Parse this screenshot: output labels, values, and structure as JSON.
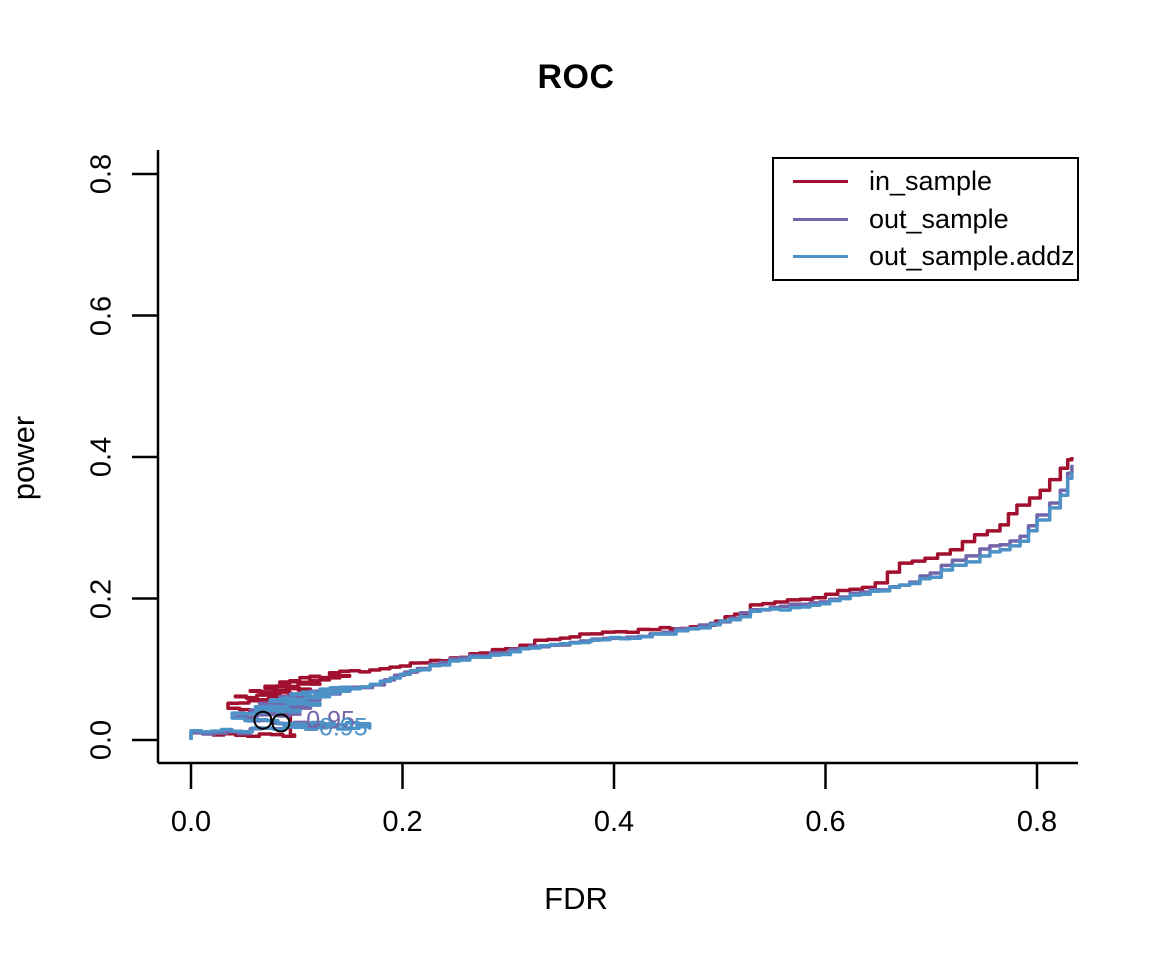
{
  "title": "ROC",
  "x_axis": {
    "label": "FDR",
    "tick_labels": [
      "0.0",
      "0.2",
      "0.4",
      "0.6",
      "0.8"
    ],
    "tick_values": [
      0.0,
      0.2,
      0.4,
      0.6,
      0.8
    ],
    "range": [
      0,
      0.87
    ]
  },
  "y_axis": {
    "label": "power",
    "tick_labels": [
      "0.0",
      "0.2",
      "0.4",
      "0.6",
      "0.8"
    ],
    "tick_values": [
      0.0,
      0.2,
      0.4,
      0.6,
      0.8
    ],
    "range": [
      0,
      0.83
    ]
  },
  "colors": {
    "axis": "#000000",
    "in_sample": "#A1112F",
    "out_sample": "#7465AB",
    "out_sample_addz": "#4D92C7",
    "marker": "#000000"
  },
  "legend": {
    "entries": [
      {
        "label": "in_sample",
        "color": "#A1112F"
      },
      {
        "label": "out_sample",
        "color": "#7465AB"
      },
      {
        "label": "out_sample.addz",
        "color": "#4D92C7"
      }
    ]
  },
  "annotations": {
    "cutoff_labels": [
      {
        "text": "0.95",
        "color": "#7465AB",
        "fdr": 0.109,
        "power": 0.025
      },
      {
        "text": "0.95",
        "color": "#4D92C7",
        "fdr": 0.121,
        "power": 0.0155
      }
    ],
    "markers": [
      {
        "fdr": 0.068,
        "power": 0.028
      },
      {
        "fdr": 0.085,
        "power": 0.024
      }
    ]
  },
  "chart_data": {
    "type": "line",
    "title": "ROC",
    "xlabel": "FDR",
    "ylabel": "power",
    "xlim": [
      0,
      0.87
    ],
    "ylim": [
      0,
      0.83
    ],
    "grid": false,
    "legend_position": "top-right",
    "series": [
      {
        "name": "in_sample",
        "color": "#A1112F",
        "points": [
          [
            0.02,
            0.007
          ],
          [
            0.098,
            0.007
          ],
          [
            0.094,
            0.035
          ],
          [
            0.046,
            0.045
          ],
          [
            0.035,
            0.052
          ],
          [
            0.094,
            0.057
          ],
          [
            0.042,
            0.061
          ],
          [
            0.103,
            0.065
          ],
          [
            0.056,
            0.069
          ],
          [
            0.113,
            0.072
          ],
          [
            0.07,
            0.076
          ],
          [
            0.122,
            0.079
          ],
          [
            0.084,
            0.082
          ],
          [
            0.131,
            0.085
          ],
          [
            0.103,
            0.088
          ],
          [
            0.15,
            0.09
          ],
          [
            0.131,
            0.095
          ],
          [
            0.169,
            0.099
          ],
          [
            0.188,
            0.103
          ],
          [
            0.217,
            0.109
          ],
          [
            0.245,
            0.116
          ],
          [
            0.273,
            0.123
          ],
          [
            0.297,
            0.129
          ],
          [
            0.311,
            0.134
          ],
          [
            0.325,
            0.141
          ],
          [
            0.349,
            0.144
          ],
          [
            0.377,
            0.15
          ],
          [
            0.401,
            0.153
          ],
          [
            0.434,
            0.156
          ],
          [
            0.472,
            0.16
          ],
          [
            0.496,
            0.168
          ],
          [
            0.514,
            0.178
          ],
          [
            0.529,
            0.191
          ],
          [
            0.552,
            0.195
          ],
          [
            0.576,
            0.199
          ],
          [
            0.6,
            0.206
          ],
          [
            0.623,
            0.213
          ],
          [
            0.647,
            0.222
          ],
          [
            0.67,
            0.25
          ],
          [
            0.694,
            0.257
          ],
          [
            0.718,
            0.269
          ],
          [
            0.741,
            0.29
          ],
          [
            0.765,
            0.304
          ],
          [
            0.781,
            0.332
          ],
          [
            0.793,
            0.342
          ],
          [
            0.803,
            0.353
          ],
          [
            0.812,
            0.368
          ],
          [
            0.822,
            0.384
          ],
          [
            0.829,
            0.396
          ],
          [
            0.833,
            0.4
          ]
        ]
      },
      {
        "name": "out_sample",
        "color": "#7465AB",
        "points": [
          [
            0.0,
            0.0
          ],
          [
            0.0,
            0.01
          ],
          [
            0.056,
            0.01
          ],
          [
            0.056,
            0.016
          ],
          [
            0.131,
            0.021
          ],
          [
            0.065,
            0.027
          ],
          [
            0.042,
            0.033
          ],
          [
            0.103,
            0.037
          ],
          [
            0.056,
            0.042
          ],
          [
            0.113,
            0.047
          ],
          [
            0.065,
            0.052
          ],
          [
            0.122,
            0.057
          ],
          [
            0.084,
            0.061
          ],
          [
            0.141,
            0.065
          ],
          [
            0.113,
            0.069
          ],
          [
            0.16,
            0.074
          ],
          [
            0.183,
            0.085
          ],
          [
            0.202,
            0.096
          ],
          [
            0.226,
            0.107
          ],
          [
            0.254,
            0.116
          ],
          [
            0.283,
            0.123
          ],
          [
            0.311,
            0.129
          ],
          [
            0.339,
            0.134
          ],
          [
            0.368,
            0.14
          ],
          [
            0.401,
            0.144
          ],
          [
            0.434,
            0.15
          ],
          [
            0.47,
            0.158
          ],
          [
            0.491,
            0.165
          ],
          [
            0.51,
            0.172
          ],
          [
            0.529,
            0.184
          ],
          [
            0.557,
            0.189
          ],
          [
            0.576,
            0.192
          ],
          [
            0.604,
            0.199
          ],
          [
            0.633,
            0.209
          ],
          [
            0.67,
            0.219
          ],
          [
            0.699,
            0.236
          ],
          [
            0.72,
            0.254
          ],
          [
            0.746,
            0.27
          ],
          [
            0.765,
            0.276
          ],
          [
            0.784,
            0.288
          ],
          [
            0.8,
            0.318
          ],
          [
            0.812,
            0.335
          ],
          [
            0.822,
            0.353
          ],
          [
            0.829,
            0.377
          ],
          [
            0.833,
            0.389
          ]
        ]
      },
      {
        "name": "out_sample.addz",
        "color": "#4D92C7",
        "points": [
          [
            0.0,
            0.0
          ],
          [
            0.0,
            0.013
          ],
          [
            0.058,
            0.013
          ],
          [
            0.058,
            0.017
          ],
          [
            0.169,
            0.017
          ],
          [
            0.169,
            0.023
          ],
          [
            0.103,
            0.023
          ],
          [
            0.051,
            0.031
          ],
          [
            0.039,
            0.038
          ],
          [
            0.103,
            0.042
          ],
          [
            0.061,
            0.047
          ],
          [
            0.122,
            0.052
          ],
          [
            0.075,
            0.057
          ],
          [
            0.131,
            0.061
          ],
          [
            0.094,
            0.065
          ],
          [
            0.15,
            0.069
          ],
          [
            0.122,
            0.072
          ],
          [
            0.16,
            0.075
          ],
          [
            0.179,
            0.083
          ],
          [
            0.198,
            0.093
          ],
          [
            0.226,
            0.105
          ],
          [
            0.254,
            0.113
          ],
          [
            0.283,
            0.12
          ],
          [
            0.321,
            0.13
          ],
          [
            0.349,
            0.136
          ],
          [
            0.377,
            0.141
          ],
          [
            0.425,
            0.146
          ],
          [
            0.47,
            0.157
          ],
          [
            0.491,
            0.163
          ],
          [
            0.51,
            0.17
          ],
          [
            0.529,
            0.182
          ],
          [
            0.576,
            0.188
          ],
          [
            0.604,
            0.197
          ],
          [
            0.633,
            0.206
          ],
          [
            0.67,
            0.219
          ],
          [
            0.699,
            0.23
          ],
          [
            0.72,
            0.247
          ],
          [
            0.746,
            0.26
          ],
          [
            0.765,
            0.269
          ],
          [
            0.784,
            0.281
          ],
          [
            0.8,
            0.311
          ],
          [
            0.812,
            0.328
          ],
          [
            0.822,
            0.346
          ],
          [
            0.829,
            0.37
          ],
          [
            0.833,
            0.379
          ]
        ]
      }
    ]
  }
}
